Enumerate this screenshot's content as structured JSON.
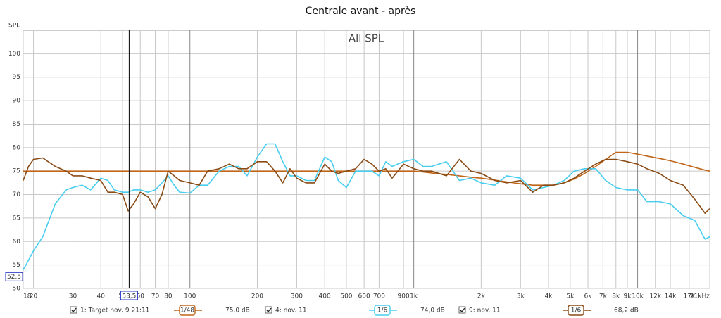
{
  "chart_data": {
    "type": "line",
    "title": "Centrale avant - après",
    "subtitle": "All SPL",
    "y_label": "SPL",
    "x_scale": "log",
    "grid": true,
    "xlim": [
      18,
      21000
    ],
    "ylim": [
      50,
      105
    ],
    "xticks": [
      18,
      20,
      30,
      40,
      50,
      60,
      70,
      80,
      100,
      200,
      300,
      400,
      500,
      600,
      700,
      900,
      {
        "value": 1000,
        "label": "1k"
      },
      {
        "value": 2000,
        "label": "2k"
      },
      {
        "value": 3000,
        "label": "3k"
      },
      {
        "value": 4000,
        "label": "4k"
      },
      {
        "value": 5000,
        "label": "5k"
      },
      {
        "value": 6000,
        "label": "6k"
      },
      {
        "value": 7000,
        "label": "7k"
      },
      {
        "value": 8000,
        "label": "8k"
      },
      {
        "value": 9000,
        "label": "9k"
      },
      {
        "value": 10000,
        "label": "10k"
      },
      {
        "value": 12000,
        "label": "12k"
      },
      {
        "value": 14000,
        "label": "14k"
      },
      {
        "value": 17000,
        "label": "17k"
      },
      {
        "value": 21000,
        "label": "21kHz"
      }
    ],
    "yticks": [
      50,
      55,
      60,
      65,
      70,
      75,
      80,
      85,
      90,
      95,
      100
    ],
    "cursor": {
      "x": {
        "value": 53.5,
        "label": "53,5"
      },
      "y": {
        "value": 52.5,
        "label": "52,5"
      }
    },
    "x": [
      18,
      19,
      20,
      22,
      25,
      28,
      30,
      33,
      36,
      40,
      43,
      46,
      50,
      53,
      56,
      60,
      65,
      70,
      75,
      80,
      85,
      90,
      100,
      110,
      120,
      135,
      150,
      165,
      180,
      200,
      220,
      240,
      260,
      280,
      300,
      330,
      360,
      400,
      430,
      460,
      500,
      550,
      600,
      650,
      700,
      750,
      800,
      900,
      1000,
      1100,
      1200,
      1400,
      1600,
      1800,
      2000,
      2300,
      2600,
      3000,
      3400,
      3800,
      4200,
      4700,
      5200,
      5800,
      6500,
      7200,
      8000,
      9000,
      10000,
      11000,
      12500,
      14000,
      16000,
      18000,
      20000,
      21000
    ],
    "series": [
      {
        "name": "1: Target nov. 9 21:11",
        "color": "#c0661a",
        "smoothing": "1/48",
        "level": {
          "value": 75.0,
          "label": "75,0 dB"
        },
        "values": [
          75,
          75,
          75,
          75,
          75,
          75,
          75,
          75,
          75,
          75,
          75,
          75,
          75,
          75,
          75,
          75,
          75,
          75,
          75,
          75,
          75,
          75,
          75,
          75,
          75,
          75,
          75,
          75,
          75,
          75,
          75,
          75,
          75,
          75,
          75,
          75,
          75,
          75,
          75,
          75,
          75,
          75,
          75,
          75,
          75,
          75,
          75,
          75,
          75,
          74.8,
          74.6,
          74.3,
          74,
          73.7,
          73.5,
          73.1,
          72.7,
          72.3,
          72,
          72,
          72,
          72.5,
          73.3,
          74.5,
          76,
          77.5,
          79,
          79,
          78.6,
          78.2,
          77.7,
          77.2,
          76.5,
          75.8,
          75.2,
          75
        ]
      },
      {
        "name": "4: nov. 11",
        "color": "#48cdf0",
        "smoothing": "1/6",
        "level": {
          "value": 74.0,
          "label": "74,0 dB"
        },
        "values": [
          54,
          56,
          58,
          61,
          68,
          71,
          71.5,
          72,
          71,
          73.5,
          73,
          71,
          70.5,
          70.5,
          71,
          71,
          70.5,
          71,
          72.5,
          74,
          72,
          70.5,
          70.3,
          72,
          72,
          75,
          76,
          76,
          74,
          78,
          80.8,
          80.8,
          77,
          74,
          74,
          73,
          73,
          78,
          77,
          73,
          71.5,
          75,
          75,
          75,
          74,
          77,
          76,
          77,
          77.5,
          76,
          76,
          77,
          73,
          73.5,
          72.5,
          72,
          74,
          73.5,
          71,
          71.5,
          72,
          73,
          75,
          75.5,
          75.5,
          73,
          71.5,
          71,
          71,
          68.5,
          68.5,
          68,
          65.5,
          64.5,
          60.5,
          61
        ]
      },
      {
        "name": "9: nov. 11",
        "color": "#8a4a14",
        "smoothing": "1/6",
        "level": {
          "value": 68.2,
          "label": "68,2 dB"
        },
        "values": [
          73,
          76,
          77.5,
          77.8,
          76,
          75,
          74,
          74,
          73.5,
          73,
          70.5,
          70.5,
          70,
          66.5,
          68,
          70.5,
          69.5,
          67,
          70,
          75,
          74,
          73,
          72.5,
          72,
          75,
          75.5,
          76.5,
          75.5,
          75.5,
          77,
          77,
          75,
          72.5,
          75.5,
          73.5,
          72.5,
          72.5,
          76.5,
          75,
          74.5,
          75,
          75.5,
          77.5,
          76.5,
          75,
          75.5,
          73.5,
          76.5,
          75.5,
          75,
          75,
          74,
          77.5,
          75,
          74.5,
          73,
          72.5,
          73,
          70.5,
          72,
          72,
          72.5,
          73.5,
          75,
          76.5,
          77.5,
          77.5,
          77,
          76.5,
          75.5,
          74.5,
          73,
          72,
          69,
          66,
          67
        ]
      }
    ]
  }
}
